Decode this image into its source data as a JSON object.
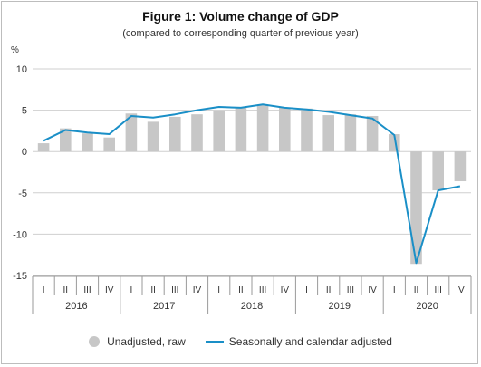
{
  "title": "Figure 1: Volume change of GDP",
  "subtitle": "(compared to corresponding quarter of previous year)",
  "colors": {
    "bar": "#c7c7c7",
    "line": "#1a8fc7",
    "grid": "#cfcfcf",
    "axis_text": "#333333"
  },
  "chart_data": {
    "type": "bar",
    "ylabel": "%",
    "ylim": [
      -15,
      10
    ],
    "yticks": [
      10,
      5,
      0,
      -5,
      -10,
      -15
    ],
    "grid": true,
    "legend_position": "bottom",
    "quarters": [
      "I",
      "II",
      "III",
      "IV",
      "I",
      "II",
      "III",
      "IV",
      "I",
      "II",
      "III",
      "IV",
      "I",
      "II",
      "III",
      "IV",
      "I",
      "II",
      "III",
      "IV"
    ],
    "years": [
      "2016",
      "2017",
      "2018",
      "2019",
      "2020"
    ],
    "series": [
      {
        "name": "Unadjusted, raw",
        "kind": "bar",
        "values": [
          1.0,
          2.8,
          2.2,
          1.7,
          4.6,
          3.6,
          4.2,
          4.5,
          5.0,
          5.3,
          5.6,
          5.3,
          5.2,
          4.4,
          4.5,
          4.3,
          2.1,
          -13.6,
          -4.7,
          -3.6
        ]
      },
      {
        "name": "Seasonally and calendar adjusted",
        "kind": "line",
        "values": [
          1.3,
          2.6,
          2.3,
          2.1,
          4.3,
          4.1,
          4.5,
          5.0,
          5.4,
          5.3,
          5.7,
          5.3,
          5.1,
          4.8,
          4.4,
          4.0,
          2.0,
          -13.5,
          -4.7,
          -4.2
        ]
      }
    ]
  },
  "legend": {
    "raw_label": "Unadjusted, raw",
    "adjusted_label": "Seasonally and calendar adjusted"
  }
}
